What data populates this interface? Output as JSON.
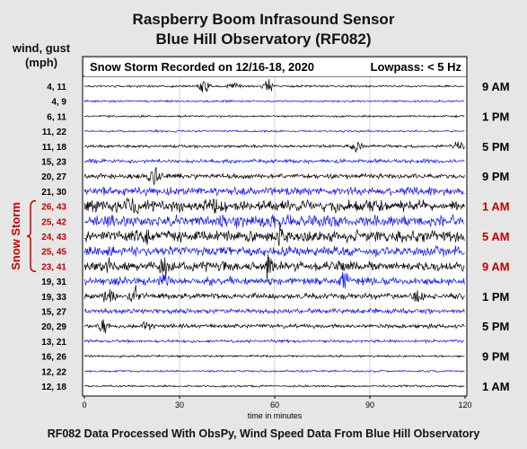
{
  "title_line1": "Raspberry Boom Infrasound Sensor",
  "title_line2": "Blue Hill Observatory (RF082)",
  "wind_header_line1": "wind, gust",
  "wind_header_line2": "(mph)",
  "footer": "RF082 Data Processed With ObsPy, Wind Speed Data From Blue Hill Observatory",
  "chart_data": {
    "type": "line",
    "title": "Snow Storm Recorded on 12/16-18, 2020",
    "filter_label": "Lowpass: < 5 Hz",
    "xlabel": "time in minutes",
    "xlim": [
      0,
      120
    ],
    "x_ticks": [
      0,
      30,
      60,
      90,
      120
    ],
    "grid": true,
    "storm_label": "Snow Storm",
    "storm_rows": [
      8,
      12
    ],
    "colors": {
      "black": "#000000",
      "blue": "#1414e6",
      "storm": "#c00000"
    },
    "rows": [
      {
        "wind": "4, 11",
        "color": "black",
        "time": "9 AM",
        "amp": 1
      },
      {
        "wind": "4, 9",
        "color": "blue",
        "time": "",
        "amp": 1
      },
      {
        "wind": "6, 11",
        "color": "black",
        "time": "1 PM",
        "amp": 1
      },
      {
        "wind": "11, 22",
        "color": "blue",
        "time": "",
        "amp": 1
      },
      {
        "wind": "11, 18",
        "color": "black",
        "time": "5 PM",
        "amp": 1.5
      },
      {
        "wind": "15, 23",
        "color": "blue",
        "time": "",
        "amp": 2
      },
      {
        "wind": "20, 27",
        "color": "black",
        "time": "9 PM",
        "amp": 2.5
      },
      {
        "wind": "21, 30",
        "color": "blue",
        "time": "",
        "amp": 4
      },
      {
        "wind": "26, 43",
        "color": "black",
        "time": "1 AM",
        "amp": 6
      },
      {
        "wind": "25, 42",
        "color": "blue",
        "time": "",
        "amp": 6
      },
      {
        "wind": "24, 43",
        "color": "black",
        "time": "5 AM",
        "amp": 6
      },
      {
        "wind": "25, 45",
        "color": "blue",
        "time": "",
        "amp": 5
      },
      {
        "wind": "23, 41",
        "color": "black",
        "time": "9 AM",
        "amp": 5
      },
      {
        "wind": "19, 31",
        "color": "blue",
        "time": "",
        "amp": 4
      },
      {
        "wind": "19, 33",
        "color": "black",
        "time": "1 PM",
        "amp": 3
      },
      {
        "wind": "15, 27",
        "color": "blue",
        "time": "",
        "amp": 2.5
      },
      {
        "wind": "20, 29",
        "color": "black",
        "time": "5 PM",
        "amp": 2
      },
      {
        "wind": "13, 21",
        "color": "blue",
        "time": "",
        "amp": 1.5
      },
      {
        "wind": "16, 26",
        "color": "black",
        "time": "9 PM",
        "amp": 1
      },
      {
        "wind": "12, 22",
        "color": "blue",
        "time": "",
        "amp": 1
      },
      {
        "wind": "12, 18",
        "color": "black",
        "time": "1 AM",
        "amp": 1
      }
    ]
  }
}
